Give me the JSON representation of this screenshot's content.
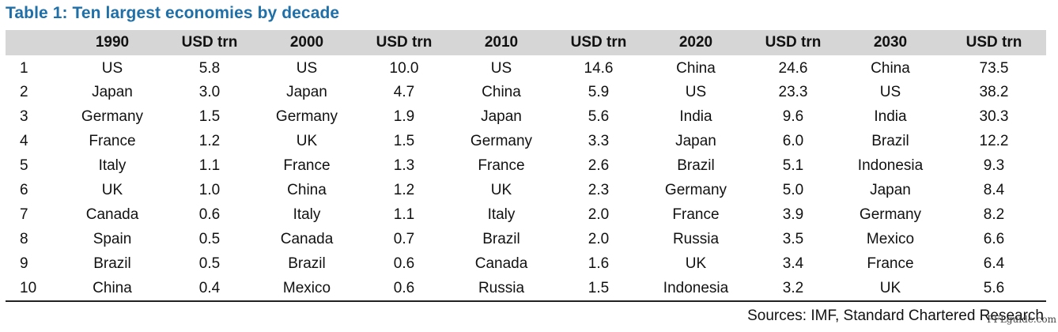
{
  "title": "Table 1: Ten largest economies by decade",
  "headers": [
    "",
    "1990",
    "USD trn",
    "2000",
    "USD trn",
    "2010",
    "USD trn",
    "2020",
    "USD trn",
    "2030",
    "USD trn"
  ],
  "rows": [
    [
      "1",
      "US",
      "5.8",
      "US",
      "10.0",
      "US",
      "14.6",
      "China",
      "24.6",
      "China",
      "73.5"
    ],
    [
      "2",
      "Japan",
      "3.0",
      "Japan",
      "4.7",
      "China",
      "5.9",
      "US",
      "23.3",
      "US",
      "38.2"
    ],
    [
      "3",
      "Germany",
      "1.5",
      "Germany",
      "1.9",
      "Japan",
      "5.6",
      "India",
      "9.6",
      "India",
      "30.3"
    ],
    [
      "4",
      "France",
      "1.2",
      "UK",
      "1.5",
      "Germany",
      "3.3",
      "Japan",
      "6.0",
      "Brazil",
      "12.2"
    ],
    [
      "5",
      "Italy",
      "1.1",
      "France",
      "1.3",
      "France",
      "2.6",
      "Brazil",
      "5.1",
      "Indonesia",
      "9.3"
    ],
    [
      "6",
      "UK",
      "1.0",
      "China",
      "1.2",
      "UK",
      "2.3",
      "Germany",
      "5.0",
      "Japan",
      "8.4"
    ],
    [
      "7",
      "Canada",
      "0.6",
      "Italy",
      "1.1",
      "Italy",
      "2.0",
      "France",
      "3.9",
      "Germany",
      "8.2"
    ],
    [
      "8",
      "Spain",
      "0.5",
      "Canada",
      "0.7",
      "Brazil",
      "2.0",
      "Russia",
      "3.5",
      "Mexico",
      "6.6"
    ],
    [
      "9",
      "Brazil",
      "0.5",
      "Brazil",
      "0.6",
      "Canada",
      "1.6",
      "UK",
      "3.4",
      "France",
      "6.4"
    ],
    [
      "10",
      "China",
      "0.4",
      "Mexico",
      "0.6",
      "Russia",
      "1.5",
      "Indonesia",
      "3.2",
      "UK",
      "5.6"
    ]
  ],
  "source": "Sources: IMF, Standard Chartered Research",
  "watermark": "FFLguide.com",
  "colors": {
    "title": "#1f6fa8",
    "header_bg": "#d6d6d6"
  }
}
